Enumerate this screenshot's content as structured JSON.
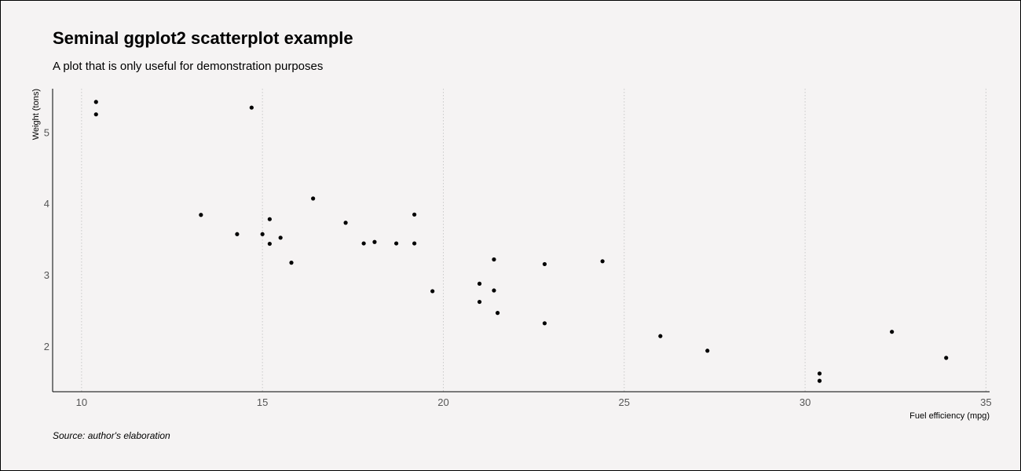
{
  "chart_data": {
    "type": "scatter",
    "title": "Seminal ggplot2 scatterplot example",
    "subtitle": "A plot that is only useful for demonstration purposes",
    "caption": "Source: author's elaboration",
    "xlabel": "Fuel efficiency (mpg)",
    "ylabel": "Weight (tons)",
    "xlim": [
      9.2,
      35.1
    ],
    "ylim": [
      1.36,
      5.61
    ],
    "xticks": [
      10,
      15,
      20,
      25,
      30,
      35
    ],
    "yticks": [
      2,
      3,
      4,
      5
    ],
    "grid": "vertical-major-dotted",
    "point_color": "#000000",
    "points": [
      {
        "x": 21.0,
        "y": 2.62
      },
      {
        "x": 21.0,
        "y": 2.875
      },
      {
        "x": 22.8,
        "y": 2.32
      },
      {
        "x": 21.4,
        "y": 3.215
      },
      {
        "x": 18.7,
        "y": 3.44
      },
      {
        "x": 18.1,
        "y": 3.46
      },
      {
        "x": 14.3,
        "y": 3.57
      },
      {
        "x": 24.4,
        "y": 3.19
      },
      {
        "x": 22.8,
        "y": 3.15
      },
      {
        "x": 19.2,
        "y": 3.44
      },
      {
        "x": 17.8,
        "y": 3.44
      },
      {
        "x": 16.4,
        "y": 4.07
      },
      {
        "x": 17.3,
        "y": 3.73
      },
      {
        "x": 15.2,
        "y": 3.78
      },
      {
        "x": 10.4,
        "y": 5.25
      },
      {
        "x": 10.4,
        "y": 5.424
      },
      {
        "x": 14.7,
        "y": 5.345
      },
      {
        "x": 32.4,
        "y": 2.2
      },
      {
        "x": 30.4,
        "y": 1.615
      },
      {
        "x": 33.9,
        "y": 1.835
      },
      {
        "x": 21.5,
        "y": 2.465
      },
      {
        "x": 15.5,
        "y": 3.52
      },
      {
        "x": 15.2,
        "y": 3.435
      },
      {
        "x": 13.3,
        "y": 3.84
      },
      {
        "x": 19.2,
        "y": 3.845
      },
      {
        "x": 27.3,
        "y": 1.935
      },
      {
        "x": 26.0,
        "y": 2.14
      },
      {
        "x": 30.4,
        "y": 1.513
      },
      {
        "x": 15.8,
        "y": 3.17
      },
      {
        "x": 19.7,
        "y": 2.77
      },
      {
        "x": 15.0,
        "y": 3.57
      },
      {
        "x": 21.4,
        "y": 2.78
      }
    ]
  }
}
